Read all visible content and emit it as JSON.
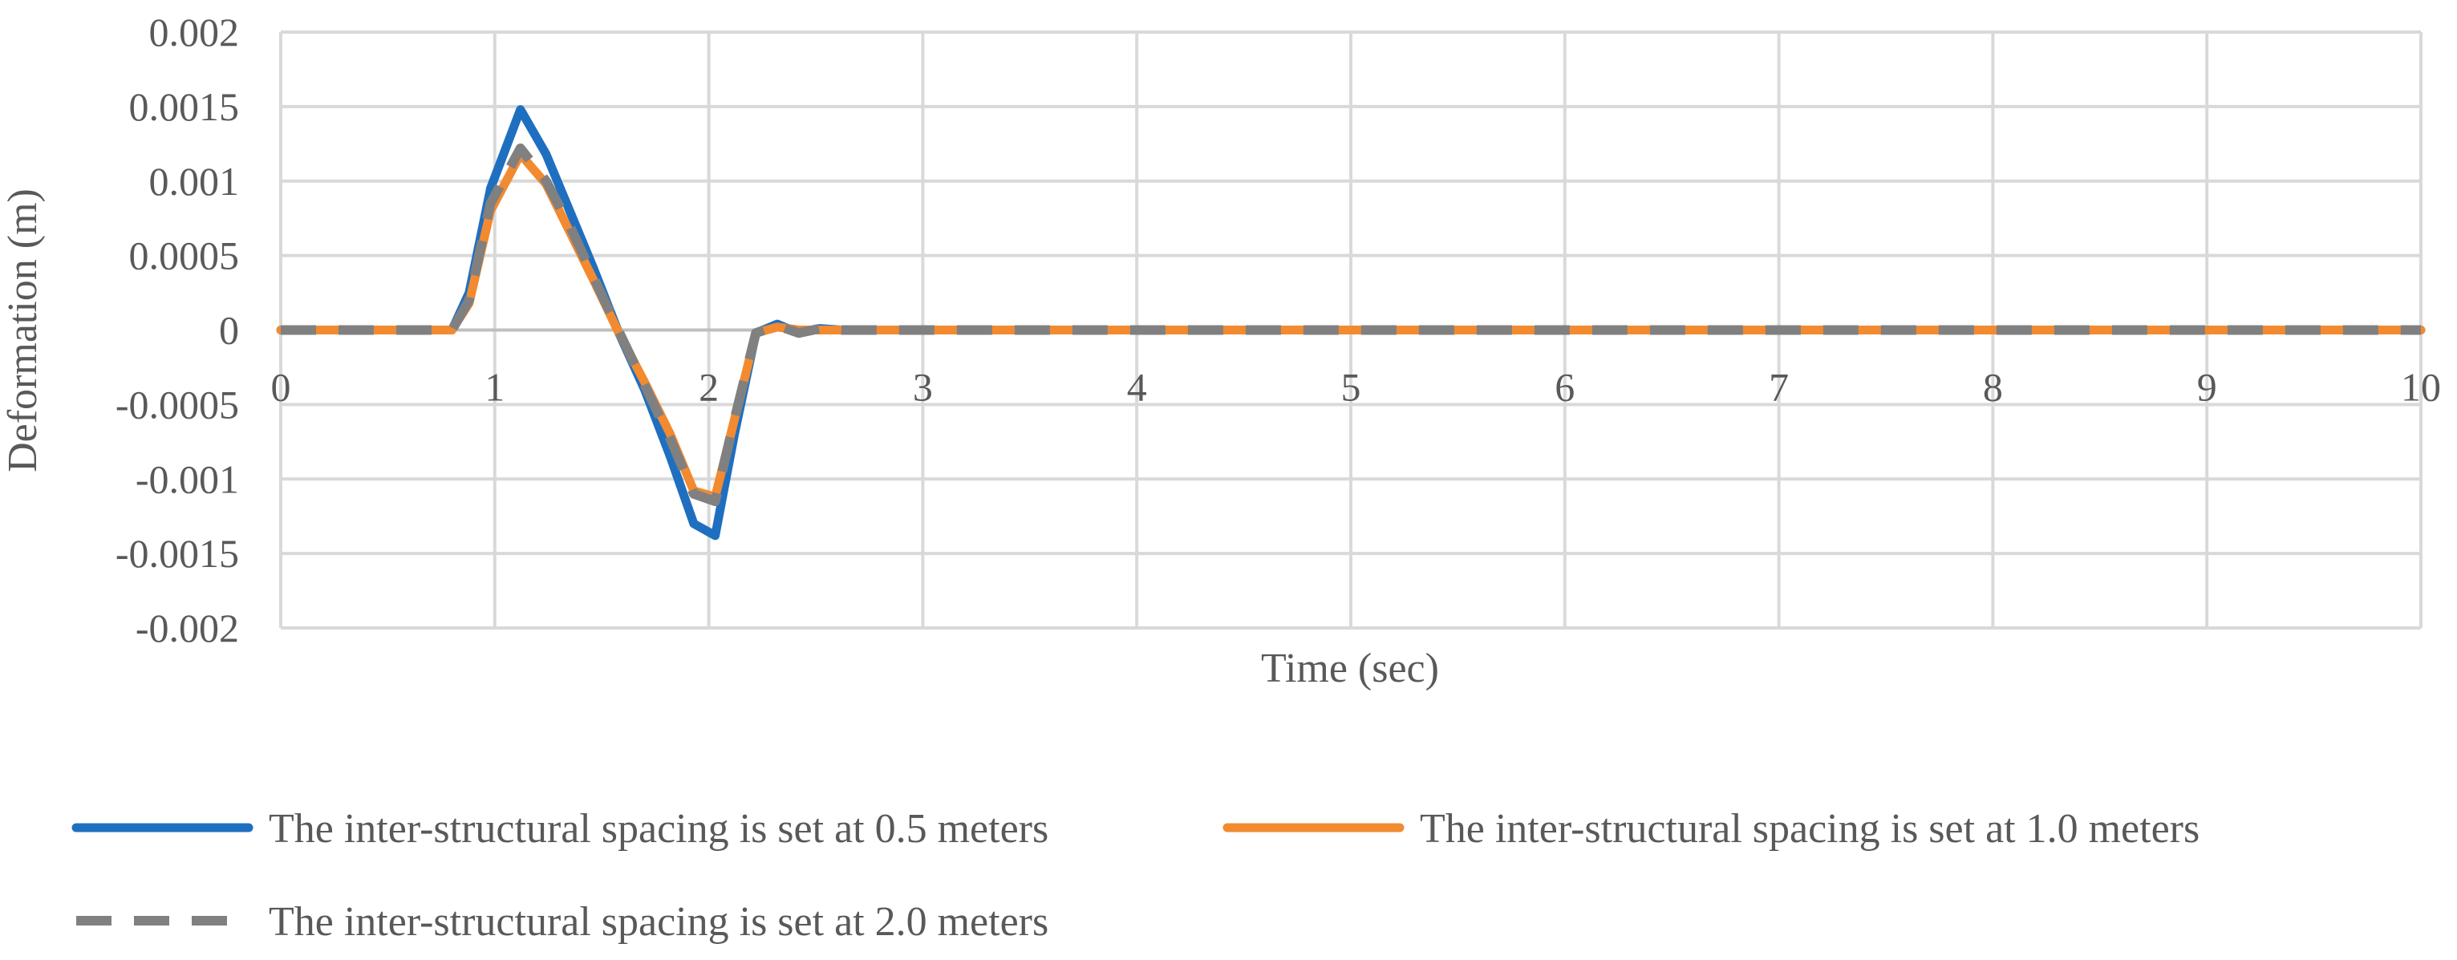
{
  "chart_data": {
    "type": "line",
    "title": "",
    "xlabel": "Time (sec)",
    "ylabel": "Deformation (m)",
    "xlim": [
      0,
      10
    ],
    "ylim": [
      -0.002,
      0.002
    ],
    "x_ticks": [
      0,
      1,
      2,
      3,
      4,
      5,
      6,
      7,
      8,
      9,
      10
    ],
    "x_tick_labels": [
      "0",
      "1",
      "2",
      "3",
      "4",
      "5",
      "6",
      "7",
      "8",
      "9",
      "10"
    ],
    "y_ticks": [
      0.002,
      0.0015,
      0.001,
      0.0005,
      0,
      -0.0005,
      -0.001,
      -0.0015,
      -0.002
    ],
    "y_tick_labels": [
      "0.002",
      "0.0015",
      "0.001",
      "0.0005",
      "0",
      "-0.0005",
      "-0.001",
      "-0.0015",
      "-0.002"
    ],
    "grid": true,
    "legend_position": "bottom",
    "series": [
      {
        "name": "The inter-structural spacing is set at 0.5 meters",
        "color": "#1f6fc0",
        "style": "solid",
        "points": [
          [
            0,
            0
          ],
          [
            0.8,
            0
          ],
          [
            0.88,
            0.00025
          ],
          [
            0.98,
            0.00095
          ],
          [
            1.12,
            0.00148
          ],
          [
            1.24,
            0.00118
          ],
          [
            1.35,
            0.0008
          ],
          [
            1.46,
            0.00042
          ],
          [
            1.58,
            -2e-05
          ],
          [
            1.7,
            -0.0004
          ],
          [
            1.82,
            -0.00085
          ],
          [
            1.93,
            -0.0013
          ],
          [
            2.03,
            -0.00138
          ],
          [
            2.12,
            -0.0007
          ],
          [
            2.22,
            -2e-05
          ],
          [
            2.32,
            4e-05
          ],
          [
            2.42,
            -2e-05
          ],
          [
            2.52,
            1e-05
          ],
          [
            2.62,
            0
          ],
          [
            10,
            0
          ]
        ]
      },
      {
        "name": "The inter-structural spacing is set at 1.0 meters",
        "color": "#f28a30",
        "style": "solid",
        "points": [
          [
            0,
            0
          ],
          [
            0.8,
            0
          ],
          [
            0.88,
            0.00018
          ],
          [
            0.98,
            0.0008
          ],
          [
            1.12,
            0.00118
          ],
          [
            1.24,
            0.00098
          ],
          [
            1.35,
            0.00066
          ],
          [
            1.46,
            0.00034
          ],
          [
            1.58,
            -2e-05
          ],
          [
            1.7,
            -0.00035
          ],
          [
            1.82,
            -0.0007
          ],
          [
            1.93,
            -0.00108
          ],
          [
            2.03,
            -0.00112
          ],
          [
            2.12,
            -0.0006
          ],
          [
            2.22,
            -2e-05
          ],
          [
            2.32,
            2e-05
          ],
          [
            2.42,
            0
          ],
          [
            10,
            0
          ]
        ]
      },
      {
        "name": "The inter-structural spacing is set at 2.0 meters",
        "color": "#808080",
        "style": "dashed",
        "points": [
          [
            0,
            0
          ],
          [
            0.8,
            0
          ],
          [
            0.88,
            0.0002
          ],
          [
            0.98,
            0.00085
          ],
          [
            1.12,
            0.00122
          ],
          [
            1.24,
            0.001
          ],
          [
            1.35,
            0.0007
          ],
          [
            1.46,
            0.00036
          ],
          [
            1.58,
            -1e-05
          ],
          [
            1.7,
            -0.00037
          ],
          [
            1.82,
            -0.00073
          ],
          [
            1.93,
            -0.0011
          ],
          [
            2.03,
            -0.00115
          ],
          [
            2.12,
            -0.0006
          ],
          [
            2.22,
            -2e-05
          ],
          [
            2.32,
            3e-05
          ],
          [
            2.42,
            -2e-05
          ],
          [
            2.52,
            1e-05
          ],
          [
            2.62,
            0
          ],
          [
            10,
            0
          ]
        ]
      }
    ]
  }
}
